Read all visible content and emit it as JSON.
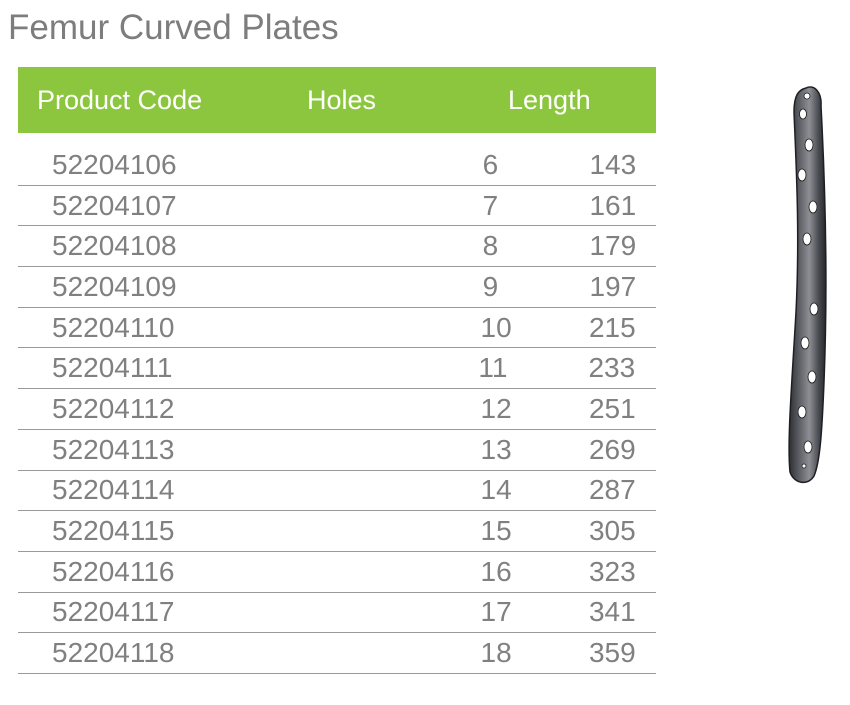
{
  "title": "Femur Curved Plates",
  "table": {
    "headers": {
      "code": "Product Code",
      "holes": "Holes",
      "length": "Length"
    },
    "rows": [
      {
        "code": "52204106",
        "holes": "6",
        "length": "143"
      },
      {
        "code": "52204107",
        "holes": "7",
        "length": "161"
      },
      {
        "code": "52204108",
        "holes": "8",
        "length": "179"
      },
      {
        "code": "52204109",
        "holes": "9",
        "length": "197"
      },
      {
        "code": "52204110",
        "holes": "10",
        "length": "215"
      },
      {
        "code": "52204111",
        "holes": "11",
        "length": "233"
      },
      {
        "code": "52204112",
        "holes": "12",
        "length": "251"
      },
      {
        "code": "52204113",
        "holes": "13",
        "length": "269"
      },
      {
        "code": "52204114",
        "holes": "14",
        "length": "287"
      },
      {
        "code": "52204115",
        "holes": "15",
        "length": "305"
      },
      {
        "code": "52204116",
        "holes": "16",
        "length": "323"
      },
      {
        "code": "52204117",
        "holes": "17",
        "length": "341"
      },
      {
        "code": "52204118",
        "holes": "18",
        "length": "359"
      }
    ]
  },
  "colors": {
    "header_background": "#8cc63f",
    "header_text": "#ffffff",
    "body_text": "#808080",
    "title_text": "#7d7d7d"
  },
  "image": {
    "icon": "curved-bone-plate-icon"
  }
}
